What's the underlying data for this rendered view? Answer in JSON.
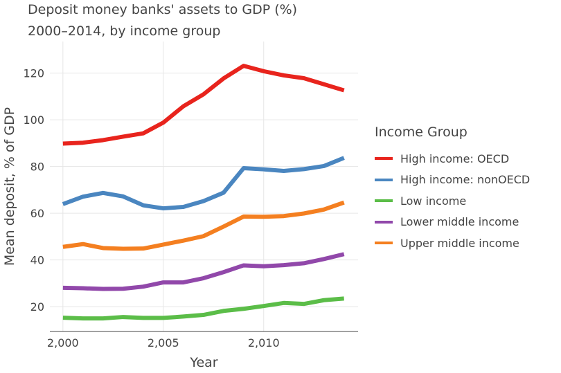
{
  "chart_data": {
    "type": "line",
    "title": "Deposit money banks' assets to GDP (%)",
    "subtitle": "2000–2014, by income group",
    "xlabel": "Year",
    "ylabel": "Mean deposit, % of GDP",
    "xlim": [
      1999.35,
      2014.7
    ],
    "ylim": [
      9.4,
      133.5
    ],
    "xticks": [
      2000,
      2005,
      2010
    ],
    "xtick_labels": [
      "2,000",
      "2,005",
      "2,010"
    ],
    "yticks": [
      20,
      40,
      60,
      80,
      100,
      120
    ],
    "grid": true,
    "legend_placement": "right",
    "legend_title": "Income Group",
    "x": [
      2000,
      2001,
      2002,
      2003,
      2004,
      2005,
      2006,
      2007,
      2008,
      2009,
      2010,
      2011,
      2012,
      2013,
      2014
    ],
    "series": [
      {
        "name": "High income: OECD",
        "color": "#e8241d",
        "values": [
          89.8,
          90.2,
          91.3,
          92.8,
          94.2,
          98.8,
          105.8,
          110.9,
          117.7,
          123.1,
          120.8,
          119.0,
          117.8,
          115.2,
          112.6
        ]
      },
      {
        "name": "High income: nonOECD",
        "color": "#4a86c0",
        "values": [
          63.9,
          67.1,
          68.7,
          67.2,
          63.4,
          62.1,
          62.7,
          65.2,
          68.8,
          79.3,
          78.8,
          78.1,
          78.9,
          80.2,
          83.7
        ]
      },
      {
        "name": "Low income",
        "color": "#5bbd48",
        "values": [
          15.3,
          15.0,
          15.0,
          15.6,
          15.2,
          15.2,
          15.8,
          16.5,
          18.2,
          19.1,
          20.3,
          21.6,
          21.2,
          22.8,
          23.5
        ]
      },
      {
        "name": "Lower middle income",
        "color": "#9148aa",
        "values": [
          28.1,
          27.9,
          27.6,
          27.7,
          28.6,
          30.4,
          30.4,
          32.2,
          34.8,
          37.7,
          37.3,
          37.8,
          38.6,
          40.4,
          42.5
        ]
      },
      {
        "name": "Upper middle income",
        "color": "#f47f20",
        "values": [
          45.6,
          46.8,
          45.1,
          44.8,
          44.9,
          46.6,
          48.3,
          50.2,
          54.3,
          58.6,
          58.5,
          58.8,
          59.9,
          61.6,
          64.6
        ]
      }
    ]
  }
}
